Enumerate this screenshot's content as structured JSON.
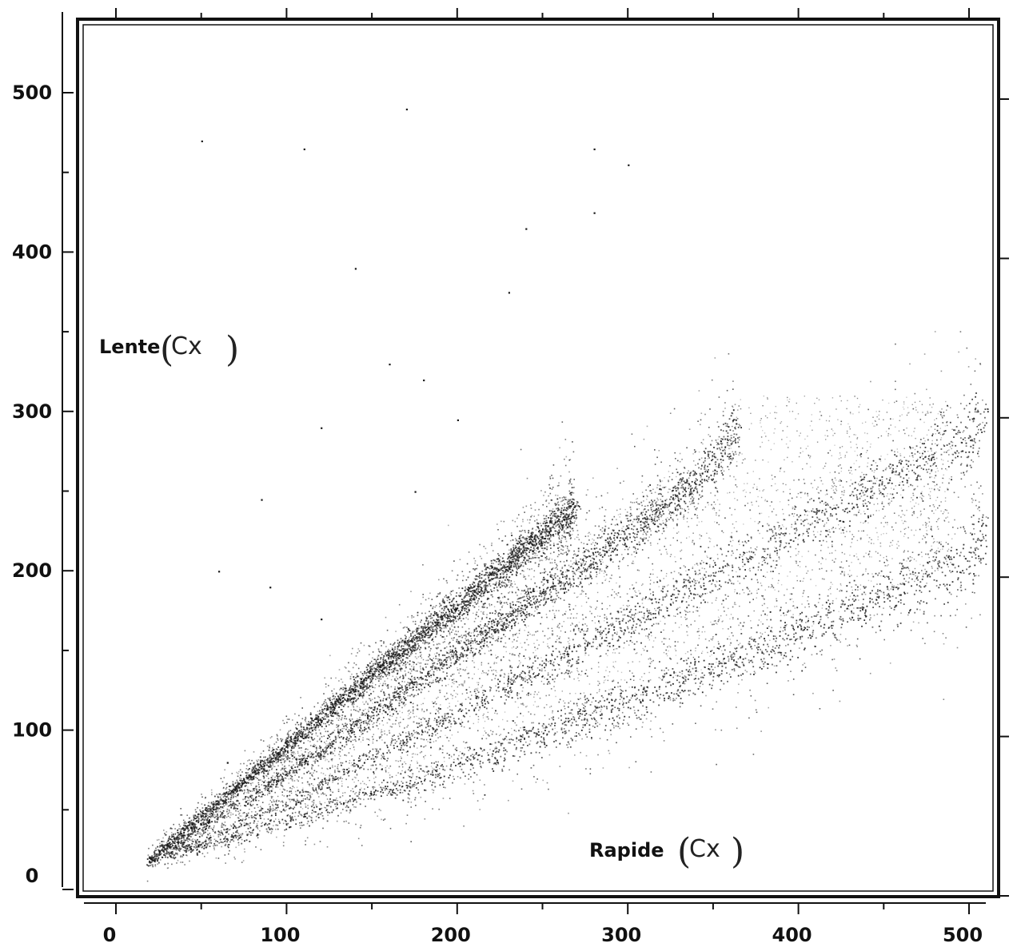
{
  "chart_data": {
    "type": "scatter",
    "title": "",
    "xlabel": "Rapide",
    "xlabel_note": "(Cx)",
    "ylabel": "Lente",
    "ylabel_note": "(Cx)",
    "xlim": [
      0,
      520
    ],
    "ylim": [
      0,
      520
    ],
    "x_ticks": [
      0,
      100,
      200,
      300,
      400,
      500
    ],
    "y_ticks": [
      0,
      100,
      200,
      300,
      400,
      500
    ],
    "x_tick_labels": [
      "0",
      "100",
      "200",
      "300",
      "400",
      "500"
    ],
    "y_tick_labels": [
      "0",
      "100",
      "200",
      "300",
      "400",
      "500"
    ],
    "grid": false,
    "legend": "none",
    "point_color": "#1a1a1a",
    "description_of_structure": "",
    "series": [
      {
        "name": "",
        "density": "very high",
        "points": [
          [
            18,
            18
          ],
          [
            40,
            38
          ],
          [
            60,
            55
          ],
          [
            80,
            73
          ],
          [
            100,
            90
          ],
          [
            120,
            108
          ],
          [
            140,
            126
          ],
          [
            160,
            144
          ],
          [
            180,
            161
          ],
          [
            200,
            178
          ],
          [
            220,
            196
          ],
          [
            240,
            214
          ],
          [
            260,
            232
          ],
          [
            270,
            240
          ]
        ]
      },
      {
        "name": "",
        "density": "high",
        "points": [
          [
            18,
            18
          ],
          [
            50,
            40
          ],
          [
            80,
            60
          ],
          [
            100,
            73
          ],
          [
            130,
            95
          ],
          [
            160,
            118
          ],
          [
            190,
            140
          ],
          [
            220,
            163
          ],
          [
            250,
            186
          ],
          [
            280,
            209
          ],
          [
            310,
            232
          ],
          [
            340,
            256
          ],
          [
            365,
            290
          ]
        ]
      },
      {
        "name": "",
        "density": "medium",
        "points": [
          [
            18,
            18
          ],
          [
            60,
            35
          ],
          [
            100,
            55
          ],
          [
            150,
            83
          ],
          [
            200,
            111
          ],
          [
            250,
            140
          ],
          [
            300,
            168
          ],
          [
            350,
            197
          ],
          [
            400,
            226
          ],
          [
            450,
            256
          ],
          [
            500,
            286
          ],
          [
            510,
            300
          ]
        ]
      },
      {
        "name": "",
        "density": "medium",
        "points": [
          [
            18,
            18
          ],
          [
            60,
            30
          ],
          [
            100,
            43
          ],
          [
            150,
            60
          ],
          [
            200,
            78
          ],
          [
            250,
            98
          ],
          [
            300,
            118
          ],
          [
            350,
            140
          ],
          [
            400,
            162
          ],
          [
            450,
            185
          ],
          [
            500,
            208
          ],
          [
            510,
            228
          ]
        ]
      }
    ],
    "sparse_points": [
      [
        50,
        470
      ],
      [
        110,
        465
      ],
      [
        180,
        320
      ],
      [
        170,
        490
      ],
      [
        240,
        415
      ],
      [
        280,
        465
      ],
      [
        300,
        455
      ],
      [
        280,
        425
      ],
      [
        85,
        245
      ],
      [
        60,
        200
      ],
      [
        90,
        190
      ],
      [
        120,
        170
      ],
      [
        140,
        390
      ],
      [
        230,
        375
      ],
      [
        160,
        330
      ],
      [
        80,
        70
      ],
      [
        65,
        80
      ],
      [
        120,
        290
      ],
      [
        200,
        295
      ],
      [
        175,
        250
      ]
    ]
  }
}
